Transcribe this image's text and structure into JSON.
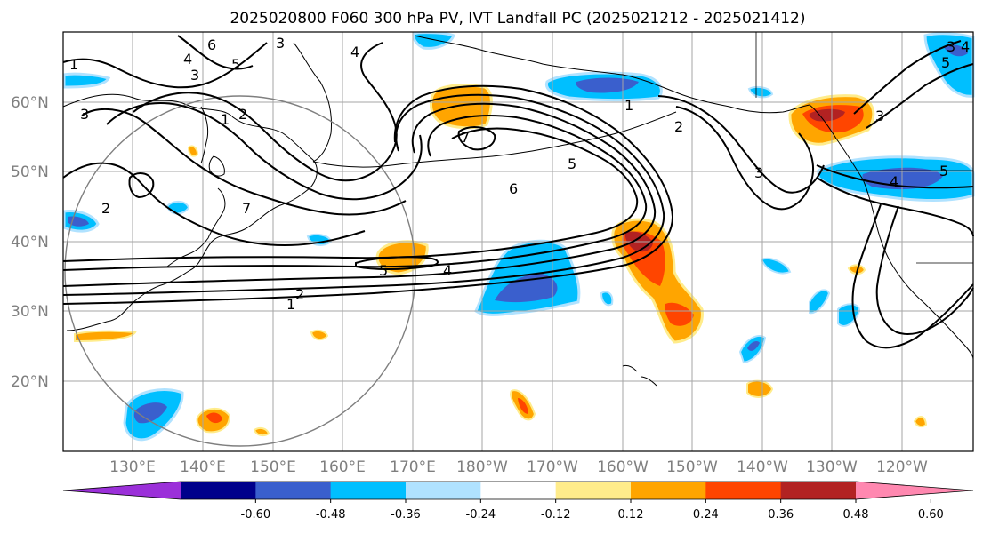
{
  "title": "2025020800 F060 300 hPa PV, IVT Landfall PC (2025021212 - 2025021412)",
  "lat_labels": [
    "60°N",
    "50°N",
    "40°N",
    "30°N",
    "20°N"
  ],
  "lon_labels": [
    "130°E",
    "140°E",
    "150°E",
    "160°E",
    "170°E",
    "180°W",
    "170°W",
    "160°W",
    "150°W",
    "140°W",
    "130°W",
    "120°W"
  ],
  "colorbar": {
    "colors": [
      "#9b30d9",
      "#00008b",
      "#3a5fcd",
      "#00bfff",
      "#b0e2ff",
      "#ffffff",
      "#ffec8b",
      "#ffa500",
      "#ff4500",
      "#b22222",
      "#ff88b0"
    ],
    "tick_labels": [
      "-0.60",
      "-0.48",
      "-0.36",
      "-0.24",
      "-0.12",
      "0.12",
      "0.24",
      "0.36",
      "0.48",
      "0.60"
    ]
  },
  "contour_labels": [
    "1",
    "2",
    "3",
    "4",
    "5",
    "6",
    "7",
    "1",
    "2",
    "3",
    "4",
    "5",
    "3",
    "2",
    "1",
    "3",
    "5",
    "4",
    "6",
    "7",
    "5",
    "4",
    "2",
    "1",
    "3",
    "3",
    "5",
    "4"
  ]
}
